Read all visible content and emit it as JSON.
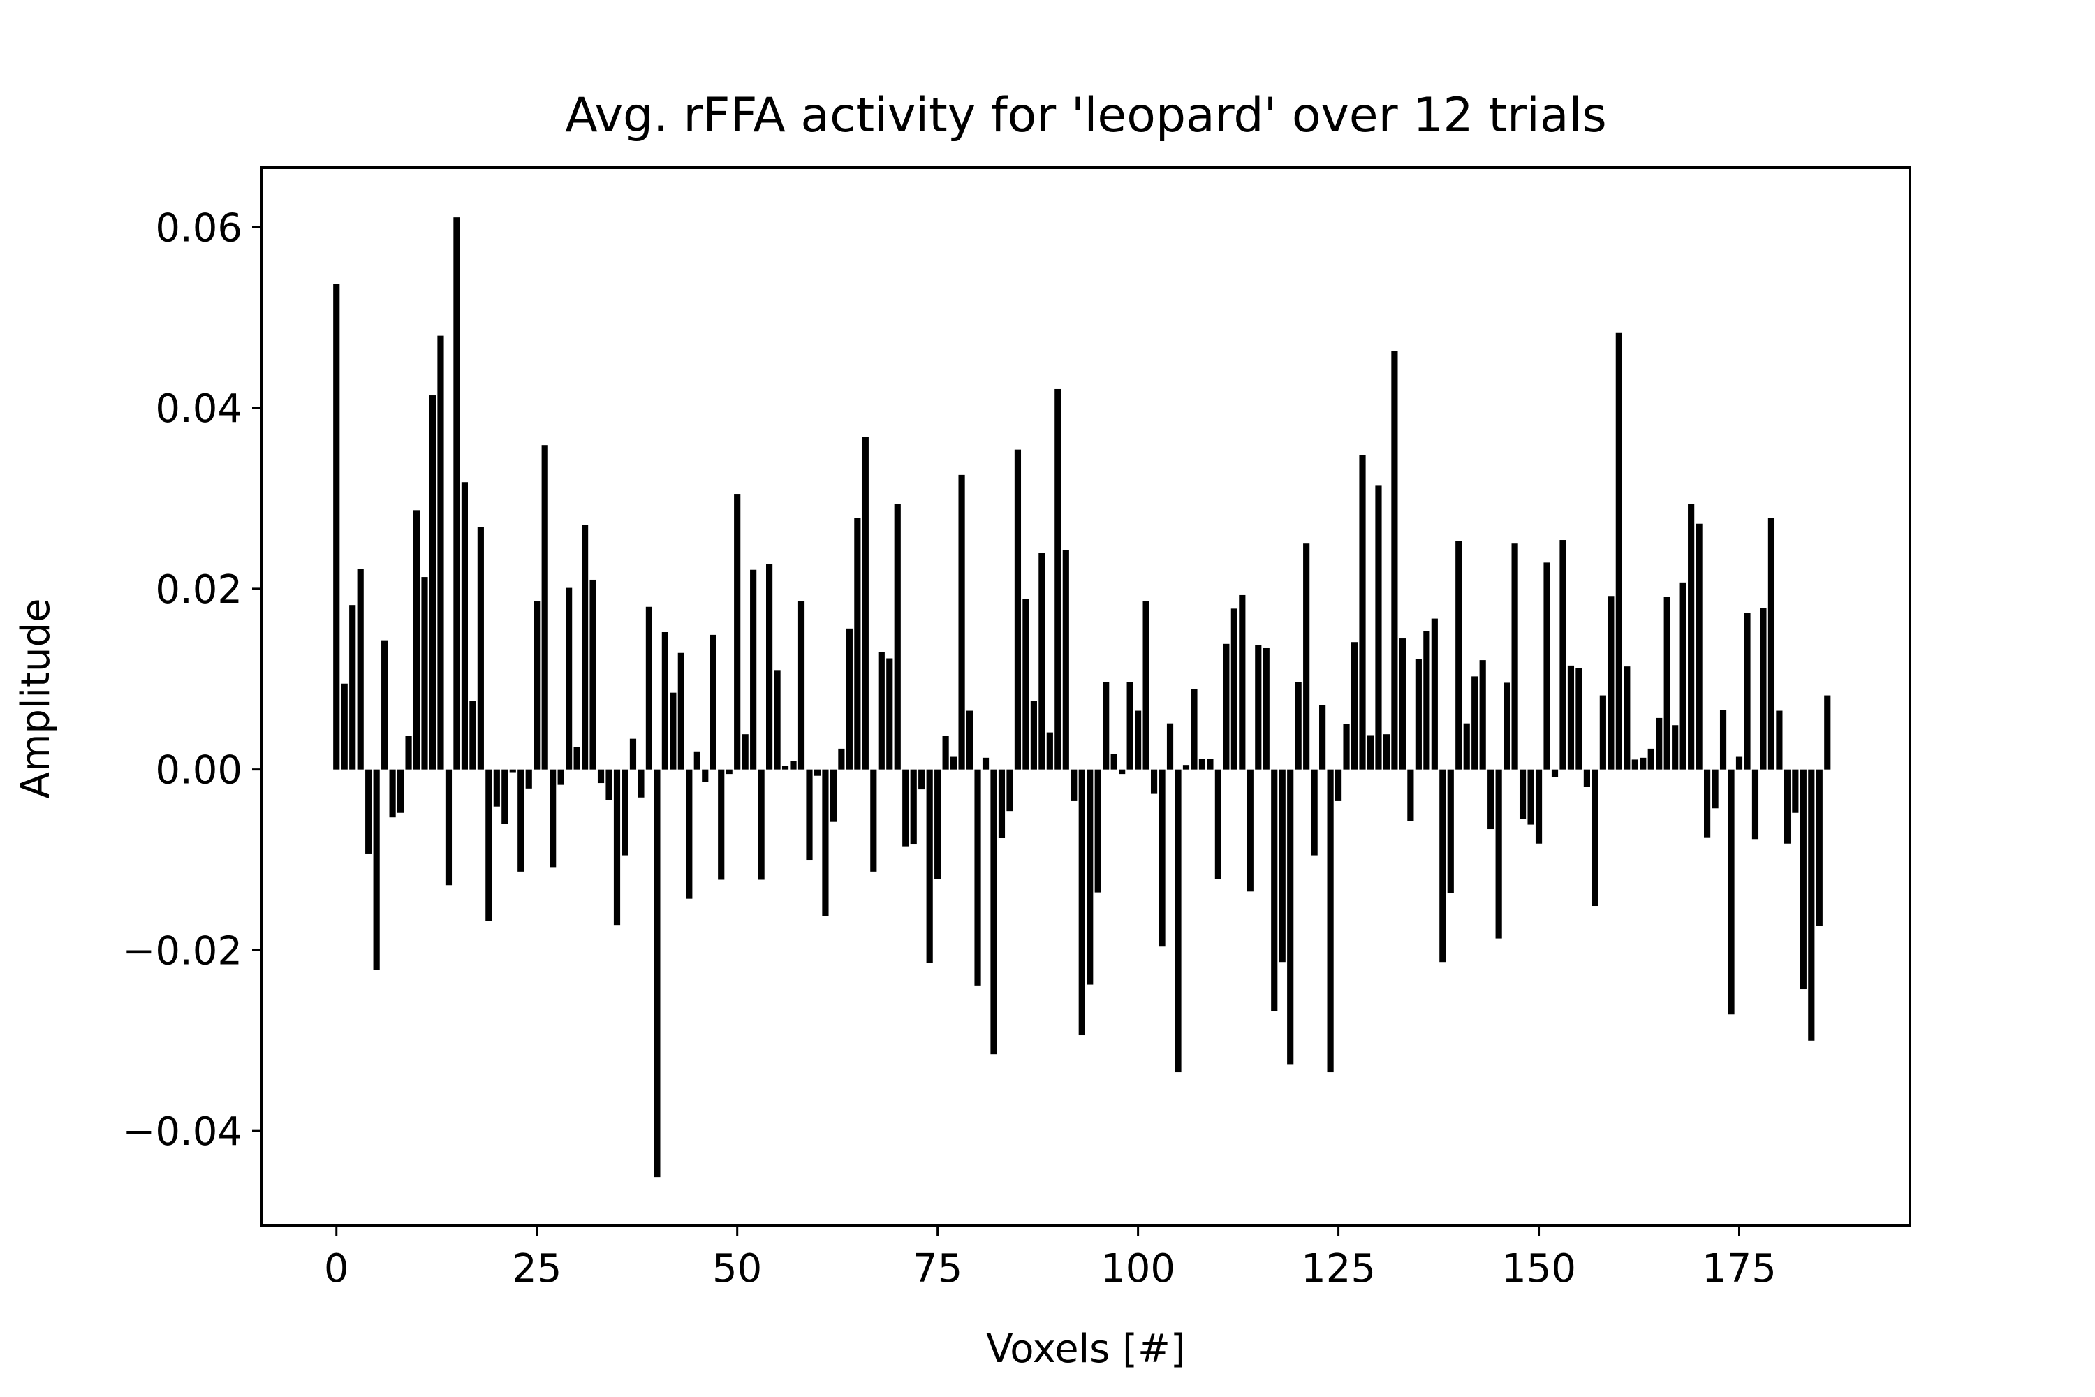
{
  "chart_data": {
    "type": "bar",
    "title": "Avg. rFFA activity for 'leopard' over 12 trials",
    "xlabel": "Voxels [#]",
    "ylabel": "Amplitude",
    "xlim": [
      -9.3,
      196.3
    ],
    "ylim": [
      -0.0505,
      0.0666
    ],
    "xticks": [
      0,
      25,
      50,
      75,
      100,
      125,
      150,
      175
    ],
    "yticks": [
      -0.04,
      -0.02,
      0.0,
      0.02,
      0.04,
      0.06
    ],
    "ytick_labels": [
      "−0.04",
      "−0.02",
      "0.00",
      "0.02",
      "0.04",
      "0.06"
    ],
    "grid": false,
    "bar_color": "#000000",
    "x": [
      0,
      1,
      2,
      3,
      4,
      5,
      6,
      7,
      8,
      9,
      10,
      11,
      12,
      13,
      14,
      15,
      16,
      17,
      18,
      19,
      20,
      21,
      22,
      23,
      24,
      25,
      26,
      27,
      28,
      29,
      30,
      31,
      32,
      33,
      34,
      35,
      36,
      37,
      38,
      39,
      40,
      41,
      42,
      43,
      44,
      45,
      46,
      47,
      48,
      49,
      50,
      51,
      52,
      53,
      54,
      55,
      56,
      57,
      58,
      59,
      60,
      61,
      62,
      63,
      64,
      65,
      66,
      67,
      68,
      69,
      70,
      71,
      72,
      73,
      74,
      75,
      76,
      77,
      78,
      79,
      80,
      81,
      82,
      83,
      84,
      85,
      86,
      87,
      88,
      89,
      90,
      91,
      92,
      93,
      94,
      95,
      96,
      97,
      98,
      99,
      100,
      101,
      102,
      103,
      104,
      105,
      106,
      107,
      108,
      109,
      110,
      111,
      112,
      113,
      114,
      115,
      116,
      117,
      118,
      119,
      120,
      121,
      122,
      123,
      124,
      125,
      126,
      127,
      128,
      129,
      130,
      131,
      132,
      133,
      134,
      135,
      136,
      137,
      138,
      139,
      140,
      141,
      142,
      143,
      144,
      145,
      146,
      147,
      148,
      149,
      150,
      151,
      152,
      153,
      154,
      155,
      156,
      157,
      158,
      159,
      160,
      161,
      162,
      163,
      164,
      165,
      166,
      167,
      168,
      169,
      170,
      171,
      172,
      173,
      174,
      175,
      176,
      177,
      178,
      179,
      180,
      181,
      182,
      183,
      184,
      185,
      186
    ],
    "values": [
      0.0537,
      0.0095,
      0.0182,
      0.0222,
      -0.0093,
      -0.0222,
      0.0143,
      -0.0053,
      -0.0048,
      0.0037,
      0.0287,
      0.0213,
      0.0414,
      0.048,
      -0.0128,
      0.0611,
      0.0318,
      0.0076,
      0.0268,
      -0.0168,
      -0.0041,
      -0.006,
      -0.0003,
      -0.0113,
      -0.0021,
      0.0186,
      0.0359,
      -0.0108,
      -0.0017,
      0.0201,
      0.0025,
      0.0271,
      0.021,
      -0.0015,
      -0.0034,
      -0.0172,
      -0.0095,
      0.0034,
      -0.0031,
      0.018,
      -0.0451,
      0.0152,
      0.0085,
      0.0129,
      -0.0143,
      0.002,
      -0.0014,
      0.0149,
      -0.0122,
      -0.0005,
      0.0305,
      0.0039,
      0.0221,
      -0.0122,
      0.0227,
      0.011,
      0.0004,
      0.0009,
      0.0186,
      -0.01,
      -0.0007,
      -0.0162,
      -0.0058,
      0.0023,
      0.0156,
      0.0278,
      0.0368,
      -0.0113,
      0.013,
      0.0123,
      0.0294,
      -0.0085,
      -0.0083,
      -0.0022,
      -0.0214,
      -0.0121,
      0.0037,
      0.0014,
      0.0326,
      0.0065,
      -0.0239,
      0.0013,
      -0.0315,
      -0.0076,
      -0.0046,
      0.0354,
      0.0189,
      0.0076,
      0.024,
      0.0041,
      0.0421,
      0.0243,
      -0.0035,
      -0.0294,
      -0.0238,
      -0.0136,
      0.0097,
      0.0017,
      -0.0005,
      0.0097,
      0.0065,
      0.0186,
      -0.0027,
      -0.0196,
      0.0051,
      -0.0335,
      0.0005,
      0.0089,
      0.0012,
      0.0012,
      -0.0121,
      0.0139,
      0.0178,
      0.0193,
      -0.0135,
      0.0138,
      0.0135,
      -0.0267,
      -0.0213,
      -0.0326,
      0.0097,
      0.025,
      -0.0095,
      0.0071,
      -0.0335,
      -0.0035,
      0.005,
      0.0141,
      0.0348,
      0.0038,
      0.0314,
      0.0039,
      0.0463,
      0.0145,
      -0.0057,
      0.0122,
      0.0153,
      0.0167,
      -0.0213,
      -0.0137,
      0.0253,
      0.0051,
      0.0103,
      0.0121,
      -0.0066,
      -0.0187,
      0.0096,
      0.025,
      -0.0055,
      -0.0061,
      -0.0082,
      0.0229,
      -0.0008,
      0.0254,
      0.0115,
      0.0112,
      -0.0019,
      -0.0151,
      0.0082,
      0.0192,
      0.0483,
      0.0114,
      0.0011,
      0.0013,
      0.0023,
      0.0057,
      0.0191,
      0.0049,
      0.0207,
      0.0294,
      0.0272,
      -0.0075,
      -0.0043,
      0.0066,
      -0.0271,
      0.0014,
      0.0173,
      -0.0077,
      0.0179,
      0.0278,
      0.0065,
      -0.0082,
      -0.0048,
      -0.0243,
      -0.03,
      -0.0173,
      0.0082
    ]
  }
}
